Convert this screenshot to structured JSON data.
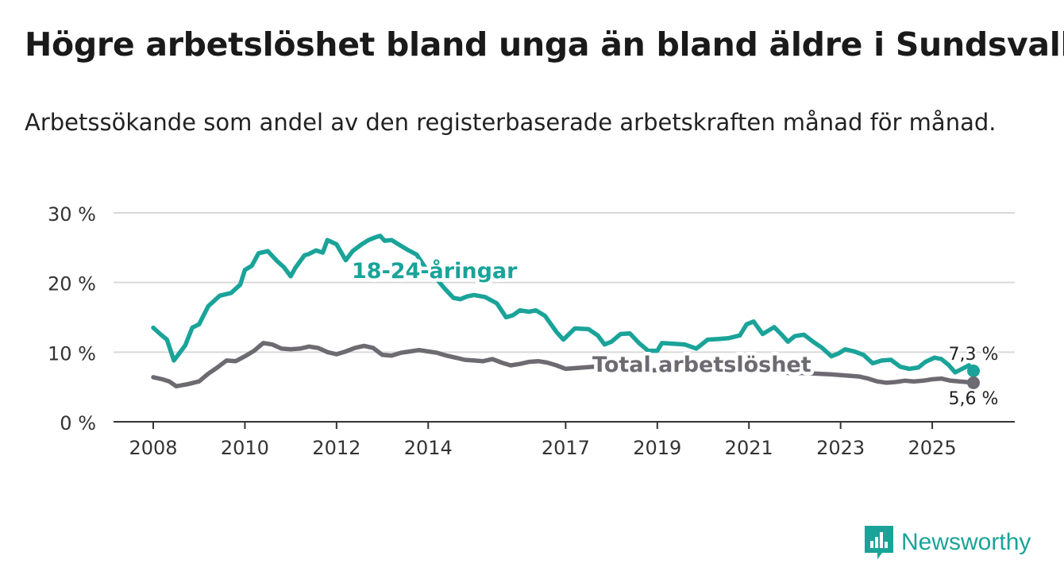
{
  "title": "Högre arbetslöshet bland unga än bland äldre i Sundsvall",
  "subtitle": "Arbetssökande som andel av den registerbaserade arbetskraften månad för månad.",
  "brand": {
    "name": "Newsworthy"
  },
  "colors": {
    "youth": "#1aa399",
    "total": "#6e6a72",
    "grid": "#d9d9d9",
    "axis": "#333333"
  },
  "chart_data": {
    "type": "line",
    "title": "Högre arbetslöshet bland unga än bland äldre i Sundsvall",
    "xlabel": "",
    "ylabel": "",
    "xlim": [
      2008,
      2025.9
    ],
    "ylim": [
      0,
      30
    ],
    "y_ticks": [
      0,
      10,
      20,
      30
    ],
    "y_tick_labels": [
      "0 %",
      "10 %",
      "20 %",
      "30 %"
    ],
    "x_ticks": [
      2008,
      2010,
      2012,
      2014,
      2017,
      2019,
      2021,
      2023,
      2025
    ],
    "x_tick_labels": [
      "2008",
      "2010",
      "2012",
      "2014",
      "2017",
      "2019",
      "2021",
      "2023",
      "2025"
    ],
    "grid": true,
    "series": [
      {
        "name": "18-24-åringar",
        "label": "18-24-åringar",
        "end_label": "7,3 %",
        "color": "#1aa399",
        "points": [
          [
            2008,
            13.5
          ],
          [
            2008.15,
            12.6
          ],
          [
            2008.3,
            11.8
          ],
          [
            2008.45,
            8.8
          ],
          [
            2008.7,
            11
          ],
          [
            2008.85,
            13.5
          ],
          [
            2009.0,
            14
          ],
          [
            2009.2,
            16.6
          ],
          [
            2009.45,
            18.1
          ],
          [
            2009.7,
            18.5
          ],
          [
            2009.9,
            19.7
          ],
          [
            2010.0,
            21.8
          ],
          [
            2010.15,
            22.4
          ],
          [
            2010.3,
            24.2
          ],
          [
            2010.5,
            24.5
          ],
          [
            2010.7,
            23.1
          ],
          [
            2010.85,
            22.2
          ],
          [
            2011.0,
            20.9
          ],
          [
            2011.1,
            22.1
          ],
          [
            2011.3,
            23.9
          ],
          [
            2011.4,
            24.1
          ],
          [
            2011.55,
            24.6
          ],
          [
            2011.7,
            24.3
          ],
          [
            2011.8,
            26.1
          ],
          [
            2012.0,
            25.5
          ],
          [
            2012.2,
            23.2
          ],
          [
            2012.35,
            24.5
          ],
          [
            2012.55,
            25.5
          ],
          [
            2012.7,
            26.1
          ],
          [
            2012.85,
            26.5
          ],
          [
            2012.95,
            26.7
          ],
          [
            2013.05,
            26
          ],
          [
            2013.2,
            26.1
          ],
          [
            2013.35,
            25.5
          ],
          [
            2013.55,
            24.7
          ],
          [
            2013.75,
            24
          ],
          [
            2014.0,
            21.5
          ],
          [
            2014.2,
            20.4
          ],
          [
            2014.35,
            19.2
          ],
          [
            2014.55,
            17.8
          ],
          [
            2014.7,
            17.6
          ],
          [
            2014.85,
            18
          ],
          [
            2015.0,
            18.2
          ],
          [
            2015.25,
            17.9
          ],
          [
            2015.5,
            17
          ],
          [
            2015.7,
            15
          ],
          [
            2015.85,
            15.3
          ],
          [
            2016.0,
            16
          ],
          [
            2016.2,
            15.8
          ],
          [
            2016.35,
            16
          ],
          [
            2016.55,
            15.2
          ],
          [
            2016.8,
            12.9
          ],
          [
            2016.95,
            11.8
          ],
          [
            2017.2,
            13.4
          ],
          [
            2017.5,
            13.3
          ],
          [
            2017.7,
            12.4
          ],
          [
            2017.85,
            11.1
          ],
          [
            2018.0,
            11.5
          ],
          [
            2018.2,
            12.6
          ],
          [
            2018.4,
            12.7
          ],
          [
            2018.6,
            11.3
          ],
          [
            2018.8,
            10.2
          ],
          [
            2019.0,
            10.2
          ],
          [
            2019.1,
            11.3
          ],
          [
            2019.35,
            11.2
          ],
          [
            2019.6,
            11.1
          ],
          [
            2019.85,
            10.5
          ],
          [
            2020.1,
            11.8
          ],
          [
            2020.35,
            11.9
          ],
          [
            2020.55,
            12
          ],
          [
            2020.8,
            12.4
          ],
          [
            2020.95,
            14
          ],
          [
            2021.1,
            14.4
          ],
          [
            2021.3,
            12.6
          ],
          [
            2021.45,
            13.2
          ],
          [
            2021.55,
            13.6
          ],
          [
            2021.7,
            12.6
          ],
          [
            2021.85,
            11.5
          ],
          [
            2022.0,
            12.3
          ],
          [
            2022.2,
            12.5
          ],
          [
            2022.4,
            11.5
          ],
          [
            2022.6,
            10.6
          ],
          [
            2022.8,
            9.4
          ],
          [
            2022.95,
            9.8
          ],
          [
            2023.1,
            10.4
          ],
          [
            2023.3,
            10.1
          ],
          [
            2023.5,
            9.6
          ],
          [
            2023.7,
            8.4
          ],
          [
            2023.9,
            8.8
          ],
          [
            2024.1,
            8.9
          ],
          [
            2024.3,
            7.9
          ],
          [
            2024.5,
            7.6
          ],
          [
            2024.7,
            7.8
          ],
          [
            2024.85,
            8.6
          ],
          [
            2025.05,
            9.2
          ],
          [
            2025.2,
            9
          ],
          [
            2025.35,
            8.2
          ],
          [
            2025.5,
            7.1
          ],
          [
            2025.65,
            7.6
          ],
          [
            2025.8,
            8.1
          ],
          [
            2025.9,
            7.3
          ]
        ]
      },
      {
        "name": "Total arbetslöshet",
        "label": "Total arbetslöshet",
        "end_label": "5,6 %",
        "color": "#6e6a72",
        "points": [
          [
            2008,
            6.4
          ],
          [
            2008.2,
            6.1
          ],
          [
            2008.35,
            5.8
          ],
          [
            2008.5,
            5.1
          ],
          [
            2008.75,
            5.4
          ],
          [
            2009.0,
            5.8
          ],
          [
            2009.2,
            6.9
          ],
          [
            2009.4,
            7.8
          ],
          [
            2009.6,
            8.8
          ],
          [
            2009.8,
            8.7
          ],
          [
            2010.0,
            9.4
          ],
          [
            2010.2,
            10.2
          ],
          [
            2010.4,
            11.3
          ],
          [
            2010.6,
            11.1
          ],
          [
            2010.8,
            10.5
          ],
          [
            2011.0,
            10.4
          ],
          [
            2011.2,
            10.5
          ],
          [
            2011.4,
            10.8
          ],
          [
            2011.6,
            10.6
          ],
          [
            2011.8,
            10
          ],
          [
            2012.0,
            9.7
          ],
          [
            2012.2,
            10.1
          ],
          [
            2012.4,
            10.6
          ],
          [
            2012.6,
            10.9
          ],
          [
            2012.8,
            10.6
          ],
          [
            2013.0,
            9.6
          ],
          [
            2013.2,
            9.5
          ],
          [
            2013.4,
            9.9
          ],
          [
            2013.6,
            10.1
          ],
          [
            2013.8,
            10.3
          ],
          [
            2014.0,
            10.1
          ],
          [
            2014.2,
            9.9
          ],
          [
            2014.4,
            9.5
          ],
          [
            2014.6,
            9.2
          ],
          [
            2014.8,
            8.9
          ],
          [
            2015.0,
            8.8
          ],
          [
            2015.2,
            8.7
          ],
          [
            2015.4,
            9.0
          ],
          [
            2015.6,
            8.5
          ],
          [
            2015.8,
            8.1
          ],
          [
            2016.0,
            8.3
          ],
          [
            2016.2,
            8.6
          ],
          [
            2016.4,
            8.7
          ],
          [
            2016.6,
            8.5
          ],
          [
            2016.8,
            8.1
          ],
          [
            2017.0,
            7.6
          ],
          [
            2017.2,
            7.7
          ],
          [
            2017.4,
            7.8
          ],
          [
            2017.6,
            7.9
          ],
          [
            2017.8,
            7.8
          ],
          [
            2018.0,
            7.6
          ],
          [
            2018.3,
            7.5
          ],
          [
            2018.6,
            7.5
          ],
          [
            2018.9,
            7.4
          ],
          [
            2019.2,
            7.4
          ],
          [
            2019.5,
            7.4
          ],
          [
            2019.8,
            7.3
          ],
          [
            2020.1,
            7.5
          ],
          [
            2020.4,
            7.6
          ],
          [
            2020.7,
            7.5
          ],
          [
            2021.0,
            7.3
          ],
          [
            2021.3,
            7.2
          ],
          [
            2021.6,
            7.1
          ],
          [
            2021.9,
            7.0
          ],
          [
            2022.2,
            7.0
          ],
          [
            2022.5,
            6.9
          ],
          [
            2022.8,
            6.8
          ],
          [
            2023.0,
            6.7
          ],
          [
            2023.2,
            6.6
          ],
          [
            2023.4,
            6.5
          ],
          [
            2023.6,
            6.2
          ],
          [
            2023.8,
            5.8
          ],
          [
            2024.0,
            5.6
          ],
          [
            2024.2,
            5.7
          ],
          [
            2024.4,
            5.9
          ],
          [
            2024.6,
            5.8
          ],
          [
            2024.8,
            5.9
          ],
          [
            2025.0,
            6.1
          ],
          [
            2025.2,
            6.2
          ],
          [
            2025.4,
            5.9
          ],
          [
            2025.6,
            5.8
          ],
          [
            2025.75,
            5.7
          ],
          [
            2025.9,
            5.6
          ]
        ]
      }
    ]
  }
}
